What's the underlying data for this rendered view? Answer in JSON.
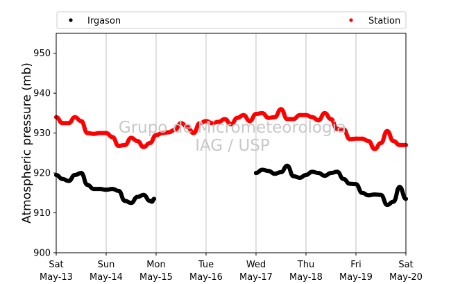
{
  "chart_data": {
    "type": "scatter",
    "ylabel": "Atmospheric pressure (mb)",
    "xlabel": "",
    "ylim": [
      900,
      955
    ],
    "yticks": [
      900,
      910,
      920,
      930,
      940,
      950
    ],
    "xlim": [
      "2017-05-13",
      "2017-05-20"
    ],
    "xticks": [
      {
        "day": "Sat",
        "date": "May-13"
      },
      {
        "day": "Sun",
        "date": "May-14"
      },
      {
        "day": "Mon",
        "date": "May-15"
      },
      {
        "day": "Tue",
        "date": "May-16"
      },
      {
        "day": "Wed",
        "date": "May-17"
      },
      {
        "day": "Thu",
        "date": "May-18"
      },
      {
        "day": "Fri",
        "date": "May-19"
      },
      {
        "day": "Sat",
        "date": "May-20"
      }
    ],
    "grid": "vertical",
    "legend": "top",
    "watermark": [
      "Grupo de Micrometeorologia",
      "IAG / USP"
    ],
    "series": [
      {
        "name": "Irgason",
        "color": "#000000",
        "x": [
          "2017-05-13 00:00",
          "2017-05-13 03:00",
          "2017-05-13 06:00",
          "2017-05-13 09:00",
          "2017-05-13 12:00",
          "2017-05-13 15:00",
          "2017-05-13 18:00",
          "2017-05-13 21:00",
          "2017-05-14 00:00",
          "2017-05-14 03:00",
          "2017-05-14 06:00",
          "2017-05-14 09:00",
          "2017-05-14 12:00",
          "2017-05-14 15:00",
          "2017-05-14 18:00",
          "2017-05-14 21:00",
          "2017-05-14 22:00",
          "2017-05-14 23:00",
          "2017-05-15 00:00",
          "2017-05-15 03:00",
          "2017-05-15 06:00",
          "2017-05-15 09:00",
          "2017-05-15 12:00",
          "2017-05-15 15:00",
          "2017-05-15 18:00",
          "2017-05-15 21:00",
          "2017-05-16 00:00",
          "2017-05-16 03:00",
          "2017-05-16 06:00",
          "2017-05-16 09:00",
          "2017-05-16 12:00",
          "2017-05-16 15:00",
          "2017-05-16 18:00",
          "2017-05-16 21:00",
          "2017-05-17 00:00",
          "2017-05-17 03:00",
          "2017-05-17 06:00",
          "2017-05-17 09:00",
          "2017-05-17 12:00",
          "2017-05-17 15:00",
          "2017-05-17 18:00",
          "2017-05-17 21:00",
          "2017-05-18 00:00",
          "2017-05-18 03:00",
          "2017-05-18 06:00",
          "2017-05-18 09:00",
          "2017-05-18 12:00",
          "2017-05-18 15:00",
          "2017-05-18 18:00",
          "2017-05-18 21:00",
          "2017-05-19 00:00",
          "2017-05-19 03:00",
          "2017-05-19 06:00",
          "2017-05-19 09:00",
          "2017-05-19 12:00",
          "2017-05-19 15:00",
          "2017-05-19 18:00",
          "2017-05-19 21:00",
          "2017-05-20 00:00"
        ],
        "y": [
          919.5,
          918.5,
          918.0,
          919.5,
          920.0,
          917.0,
          916.0,
          916.0,
          915.8,
          916.0,
          915.5,
          913.0,
          912.5,
          914.0,
          914.5,
          913.0,
          912.8,
          913.5,
          null,
          null,
          null,
          null,
          null,
          null,
          null,
          null,
          null,
          null,
          null,
          null,
          null,
          null,
          null,
          null,
          920.0,
          920.8,
          920.5,
          919.8,
          920.2,
          921.8,
          919.2,
          918.8,
          919.5,
          920.3,
          920.0,
          919.3,
          920.0,
          920.3,
          918.5,
          917.3,
          917.2,
          915.0,
          914.4,
          914.6,
          914.5,
          912.0,
          912.8,
          916.5,
          913.5
        ]
      },
      {
        "name": "Station",
        "color": "#ff0000",
        "x": [
          "2017-05-13 00:00",
          "2017-05-13 03:00",
          "2017-05-13 06:00",
          "2017-05-13 09:00",
          "2017-05-13 12:00",
          "2017-05-13 15:00",
          "2017-05-13 18:00",
          "2017-05-13 21:00",
          "2017-05-14 00:00",
          "2017-05-14 03:00",
          "2017-05-14 06:00",
          "2017-05-14 09:00",
          "2017-05-14 12:00",
          "2017-05-14 15:00",
          "2017-05-14 18:00",
          "2017-05-14 21:00",
          "2017-05-15 00:00",
          "2017-05-15 03:00",
          "2017-05-15 06:00",
          "2017-05-15 09:00",
          "2017-05-15 12:00",
          "2017-05-15 15:00",
          "2017-05-15 18:00",
          "2017-05-15 21:00",
          "2017-05-16 00:00",
          "2017-05-16 03:00",
          "2017-05-16 06:00",
          "2017-05-16 09:00",
          "2017-05-16 12:00",
          "2017-05-16 15:00",
          "2017-05-16 18:00",
          "2017-05-16 21:00",
          "2017-05-17 00:00",
          "2017-05-17 03:00",
          "2017-05-17 06:00",
          "2017-05-17 09:00",
          "2017-05-17 12:00",
          "2017-05-17 15:00",
          "2017-05-17 18:00",
          "2017-05-17 21:00",
          "2017-05-18 00:00",
          "2017-05-18 03:00",
          "2017-05-18 06:00",
          "2017-05-18 09:00",
          "2017-05-18 12:00",
          "2017-05-18 15:00",
          "2017-05-18 18:00",
          "2017-05-18 21:00",
          "2017-05-19 00:00",
          "2017-05-19 03:00",
          "2017-05-19 06:00",
          "2017-05-19 09:00",
          "2017-05-19 12:00",
          "2017-05-19 15:00",
          "2017-05-19 18:00",
          "2017-05-19 21:00",
          "2017-05-20 00:00"
        ],
        "y": [
          934.0,
          932.5,
          932.5,
          934.0,
          933.0,
          930.0,
          929.8,
          930.0,
          930.0,
          929.0,
          926.8,
          927.0,
          928.8,
          928.0,
          926.5,
          927.5,
          929.5,
          930.0,
          930.2,
          930.8,
          932.5,
          931.5,
          930.0,
          932.5,
          933.0,
          932.5,
          932.8,
          933.5,
          932.2,
          933.8,
          934.5,
          933.0,
          934.8,
          935.0,
          933.8,
          934.0,
          936.0,
          933.5,
          933.5,
          934.5,
          934.5,
          934.0,
          933.2,
          935.0,
          933.5,
          931.0,
          931.0,
          928.5,
          928.6,
          928.6,
          928.0,
          926.0,
          927.5,
          930.5,
          928.0,
          927.0,
          927.0
        ]
      }
    ]
  }
}
